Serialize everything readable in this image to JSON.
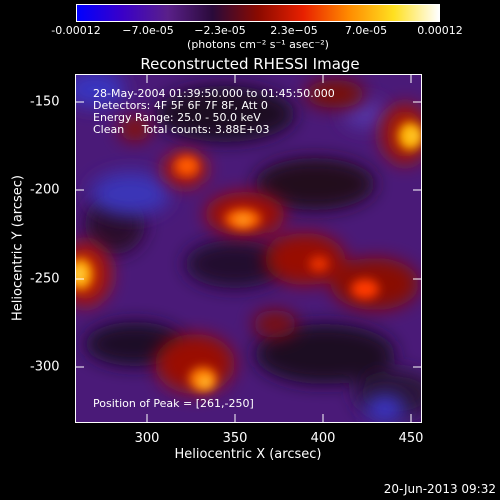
{
  "colorbar": {
    "ticks": [
      "-0.00012",
      "−7.0e-05",
      "−2.3e-05",
      "2.3e−05",
      "7.0e-05",
      "0.00012"
    ],
    "units": "(photons cm⁻² s⁻¹ asec⁻²)",
    "colors": [
      "#0000ff",
      "#3a00c8",
      "#5a208a",
      "#2a0a3a",
      "#8a0a00",
      "#e82000",
      "#ff8a00",
      "#ffe020",
      "#ffffff"
    ]
  },
  "title": "Reconstructed RHESSI Image",
  "annotations": {
    "time_range": "28-May-2004 01:39:50.000 to 01:45:50.000",
    "detectors": "Detectors: 4F 5F 6F 7F 8F, Att 0",
    "energy": "Energy Range: 25.0 - 50.0 keV",
    "clean": "Clean     Total counts: 3.88E+03",
    "peak": "Position of Peak = [261,-250]"
  },
  "x_axis": {
    "label": "Heliocentric X (arcsec)",
    "ticks": [
      "300",
      "350",
      "400",
      "450"
    ]
  },
  "y_axis": {
    "label": "Heliocentric Y (arcsec)",
    "ticks": [
      "-150",
      "-200",
      "-250",
      "-300"
    ]
  },
  "footer": "20-Jun-2013 09:32"
}
